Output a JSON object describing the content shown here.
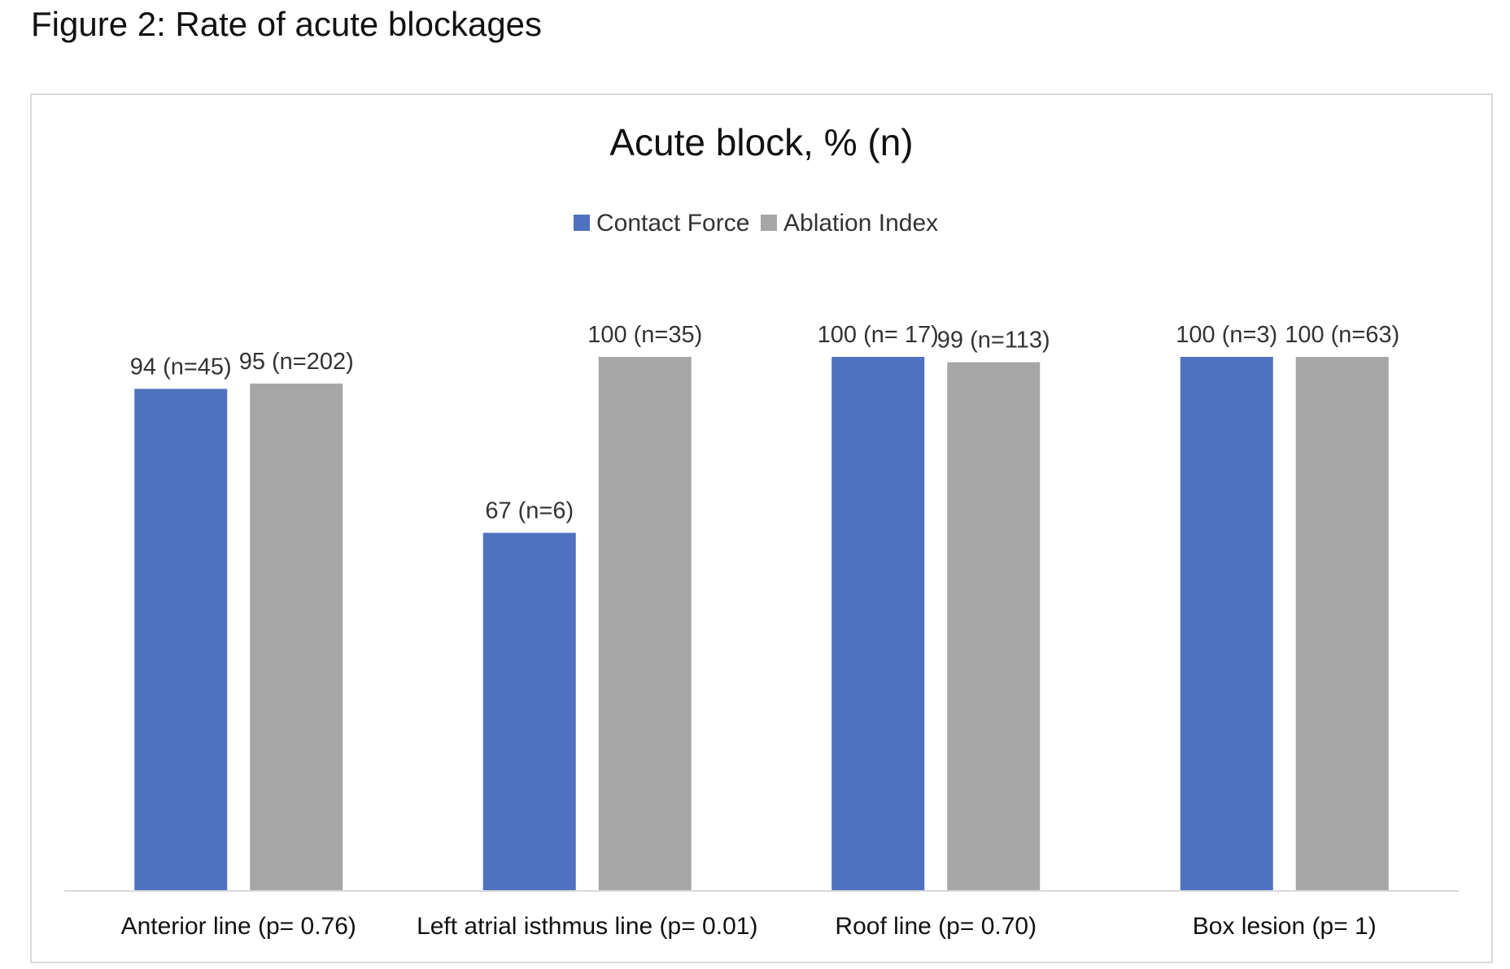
{
  "figure": {
    "caption": "Figure 2: Rate of acute blockages"
  },
  "colors": {
    "contact_force": "#4e72bf",
    "ablation_index": "#a6a6a6",
    "axis": "#d9d9d9",
    "text": "#333333"
  },
  "chart_data": {
    "type": "bar",
    "title": "Acute block, % (n)",
    "xlabel": "",
    "ylabel": "",
    "ylim": [
      0,
      100
    ],
    "grid": false,
    "legend_position": "top-center",
    "categories": [
      "Anterior line (p= 0.76)",
      "Left atrial isthmus line (p= 0.01)",
      "Roof line (p= 0.70)",
      "Box lesion (p= 1)"
    ],
    "series": [
      {
        "name": "Contact Force",
        "color": "#4e72bf",
        "values": [
          94,
          67,
          100,
          100
        ],
        "labels": [
          "94 (n=45)",
          "67 (n=6)",
          "100 (n= 17)",
          "100 (n=3)"
        ]
      },
      {
        "name": "Ablation Index",
        "color": "#a6a6a6",
        "values": [
          95,
          100,
          99,
          100
        ],
        "labels": [
          "95 (n=202)",
          "100 (n=35)",
          "99 (n=113)",
          "100 (n=63)"
        ]
      }
    ]
  }
}
